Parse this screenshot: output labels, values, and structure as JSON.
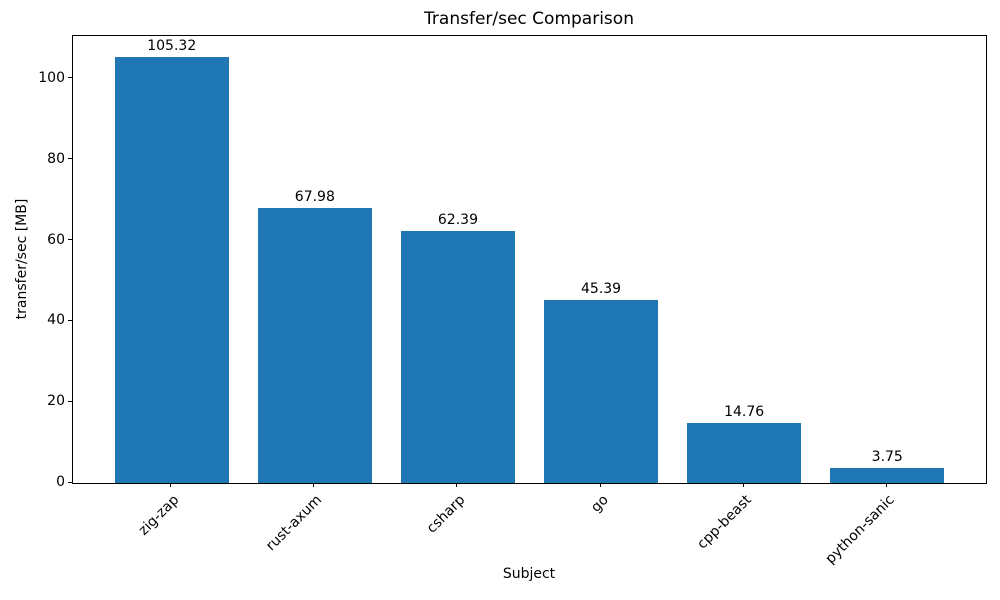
{
  "chart_data": {
    "type": "bar",
    "title": "Transfer/sec Comparison",
    "xlabel": "Subject",
    "ylabel": "transfer/sec [MB]",
    "categories": [
      "zig-zap",
      "rust-axum",
      "csharp",
      "go",
      "cpp-beast",
      "python-sanic"
    ],
    "values": [
      105.32,
      67.98,
      62.39,
      45.39,
      14.76,
      3.75
    ],
    "value_labels": [
      "105.32",
      "67.98",
      "62.39",
      "45.39",
      "14.76",
      "3.75"
    ],
    "yticks": [
      0,
      20,
      40,
      60,
      80,
      100
    ],
    "ylim": [
      0,
      110.6
    ],
    "bar_color": "#1f77b4",
    "text_color": "#000000",
    "grid": false,
    "x_tick_rotation_deg": 45
  }
}
